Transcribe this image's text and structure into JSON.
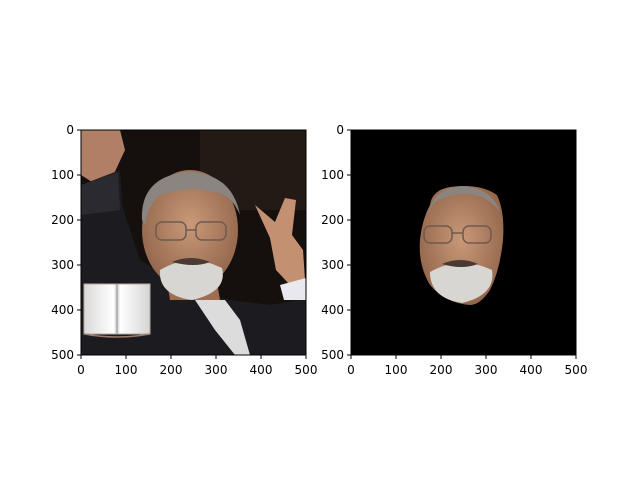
{
  "panels": [
    {
      "id": "left",
      "content": "original-photo",
      "x_ticks": [
        "0",
        "100",
        "200",
        "300",
        "400",
        "500"
      ],
      "y_ticks": [
        "0",
        "100",
        "200",
        "300",
        "400",
        "500"
      ],
      "x_range": [
        0,
        500
      ],
      "y_range": [
        0,
        500
      ]
    },
    {
      "id": "right",
      "content": "segmented-face-on-black",
      "x_ticks": [
        "0",
        "100",
        "200",
        "300",
        "400",
        "500"
      ],
      "y_ticks": [
        "0",
        "100",
        "200",
        "300",
        "400",
        "500"
      ],
      "x_range": [
        0,
        500
      ],
      "y_range": [
        0,
        500
      ]
    }
  ],
  "colors": {
    "background_dark": "#15100e",
    "suit": "#1c1c20",
    "skin": "#b98a6c",
    "hair": "#8a8580",
    "beard": "#d8d6d2",
    "mask_background": "#000000"
  }
}
